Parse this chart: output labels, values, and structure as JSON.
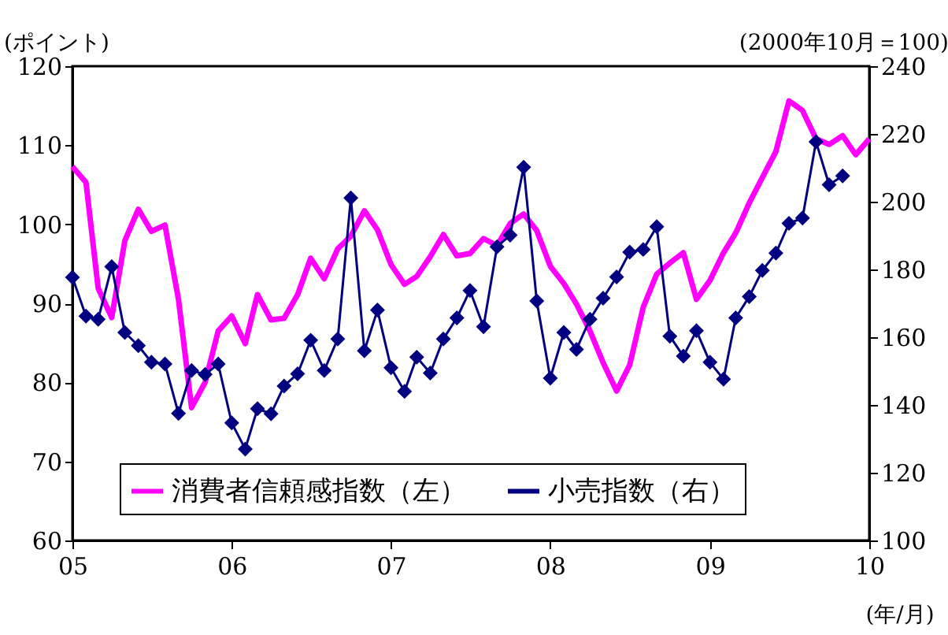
{
  "chart_data": {
    "type": "line",
    "ylabel": "(ポイント)",
    "y2label": "(2000年10月＝100)",
    "xlabel": "(年/月)",
    "x": [
      "2005-01",
      "2005-02",
      "2005-03",
      "2005-04",
      "2005-05",
      "2005-06",
      "2005-07",
      "2005-08",
      "2005-09",
      "2005-10",
      "2005-11",
      "2005-12",
      "2006-01",
      "2006-02",
      "2006-03",
      "2006-04",
      "2006-05",
      "2006-06",
      "2006-07",
      "2006-08",
      "2006-09",
      "2006-10",
      "2006-11",
      "2006-12",
      "2007-01",
      "2007-02",
      "2007-03",
      "2007-04",
      "2007-05",
      "2007-06",
      "2007-07",
      "2007-08",
      "2007-09",
      "2007-10",
      "2007-11",
      "2007-12",
      "2008-01",
      "2008-02",
      "2008-03",
      "2008-04",
      "2008-05",
      "2008-06",
      "2008-07",
      "2008-08",
      "2008-09",
      "2008-10",
      "2008-11",
      "2008-12",
      "2009-01",
      "2009-02",
      "2009-03",
      "2009-04",
      "2009-05",
      "2009-06",
      "2009-07",
      "2009-08",
      "2009-09",
      "2009-10",
      "2009-11",
      "2009-12",
      "2010-01"
    ],
    "series": [
      {
        "name": "消費者信頼感指数（左）",
        "color": "#ff00ff",
        "marker": "none",
        "values": [
          107.3,
          105.3,
          91.9,
          88.2,
          97.9,
          101.9,
          99.1,
          99.9,
          90.5,
          76.8,
          80,
          86.5,
          88.4,
          84.9,
          91.1,
          87.9,
          88.1,
          91.1,
          95.7,
          93.1,
          96.9,
          98.5,
          101.7,
          99.3,
          94.9,
          92.4,
          93.4,
          95.9,
          98.7,
          96,
          96.3,
          98.2,
          97.3,
          100.1,
          101.3,
          99.2,
          94.7,
          92.5,
          89.9,
          86.5,
          82.5,
          78.9,
          82.2,
          89.5,
          93.7,
          95.1,
          96.4,
          90.5,
          92.9,
          96.4,
          98.9,
          102.7,
          105.9,
          109.2,
          115.6,
          114.4,
          110.8,
          110.1,
          111.2,
          108.8,
          110.8
        ]
      },
      {
        "name": "小売指数（右）",
        "color": "#000080",
        "marker": "diamond",
        "axis": "y2",
        "values": [
          177.7,
          166.2,
          165.3,
          180.8,
          161.4,
          157.5,
          152.6,
          152.1,
          137.5,
          150.2,
          149,
          152.1,
          134.7,
          127,
          138.9,
          137.4,
          145.6,
          149.2,
          159.1,
          150.2,
          159.5,
          201.1,
          156,
          168,
          151,
          144,
          154.1,
          149.4,
          159.5,
          165.7,
          173.8,
          163.1,
          186.7,
          190.1,
          210.2,
          170.7,
          147.9,
          161.4,
          156.4,
          165.3,
          171.5,
          177.8,
          185.1,
          185.9,
          192.6,
          160.3,
          154.4,
          161.9,
          152.6,
          147.6,
          165.7,
          172,
          179.7,
          184.8,
          193.6,
          195.2,
          217.7,
          205,
          207.6,
          null,
          null
        ]
      }
    ],
    "xlim": [
      "2005-01",
      "2010-01"
    ],
    "xticks": [
      {
        "value": "2005-01",
        "label": "05"
      },
      {
        "value": "2006-01",
        "label": "06"
      },
      {
        "value": "2007-01",
        "label": "07"
      },
      {
        "value": "2008-01",
        "label": "08"
      },
      {
        "value": "2009-01",
        "label": "09"
      },
      {
        "value": "2010-01",
        "label": "10"
      }
    ],
    "ylim": [
      60,
      120
    ],
    "yticks": [
      60,
      70,
      80,
      90,
      100,
      110,
      120
    ],
    "y2lim": [
      100,
      240
    ],
    "y2ticks": [
      100,
      120,
      140,
      160,
      180,
      200,
      220,
      240
    ],
    "grid": false,
    "legend": "bottom",
    "line_style": "solid"
  }
}
